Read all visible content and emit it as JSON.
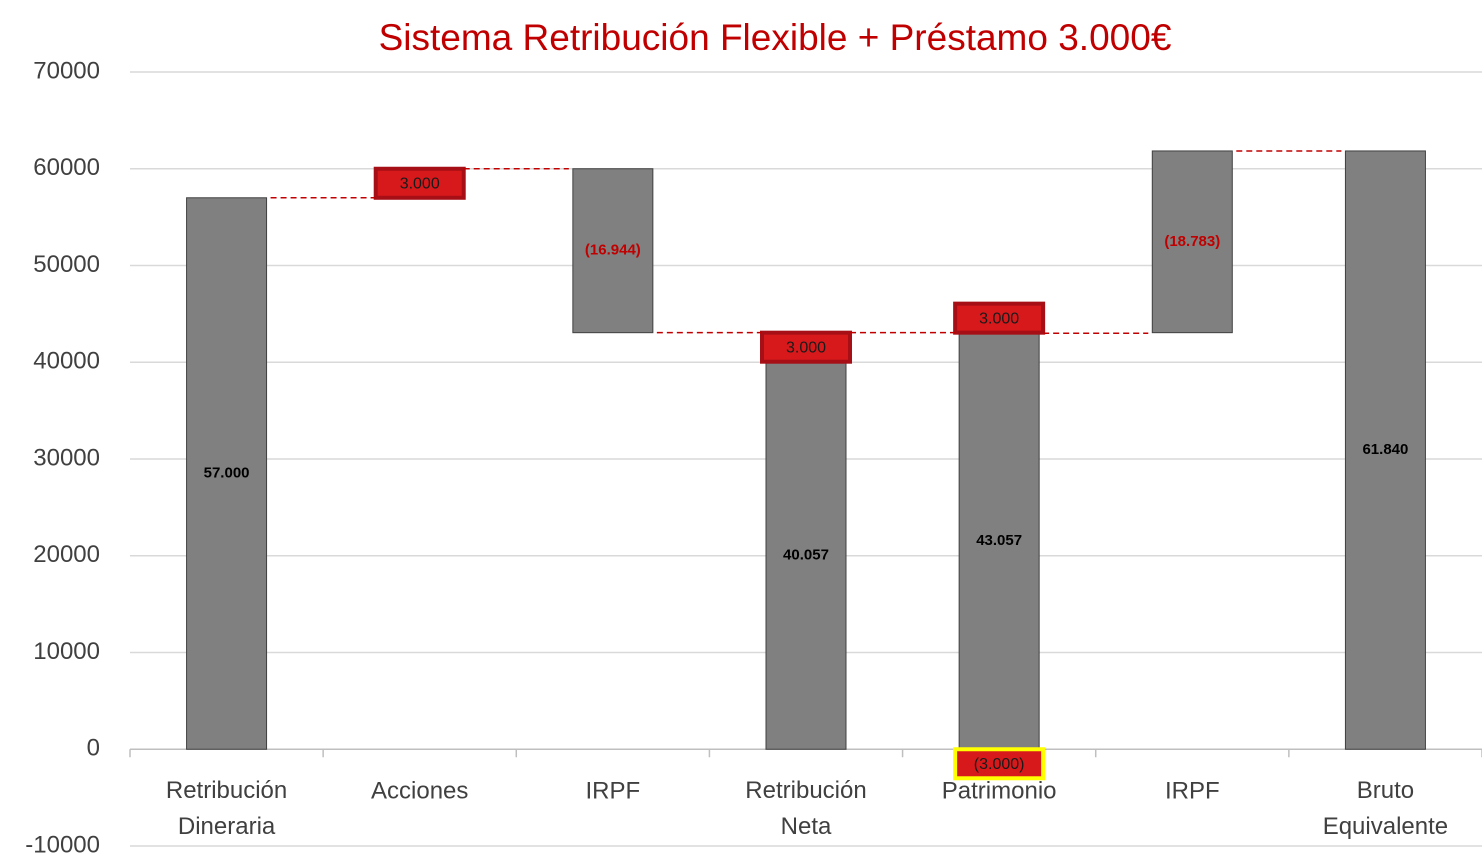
{
  "chart_data": {
    "type": "waterfall",
    "title": "Sistema Retribución Flexible + Préstamo 3.000€",
    "categories": [
      "Retribución Dineraria",
      "Acciones",
      "IRPF",
      "Retribución Neta",
      "Patrimonio",
      "IRPF",
      "Bruto Equivalente"
    ],
    "ylim": [
      -10000,
      70000
    ],
    "yticks": [
      -10000,
      0,
      10000,
      20000,
      30000,
      40000,
      50000,
      60000,
      70000
    ],
    "grid": true,
    "gray": {
      "color": "#808080",
      "label_color": "#000000",
      "base": [
        0,
        null,
        43056,
        0,
        0,
        43057,
        0
      ],
      "values": [
        57000,
        null,
        -16944,
        40057,
        43057,
        -18783,
        61840
      ],
      "value_labels": [
        "57.000",
        null,
        "(16.944)",
        "40.057",
        "43.057",
        "(18.783)",
        "61.840"
      ],
      "negative_label_color": "#c00000"
    },
    "red": [
      {
        "color": "#d7191c",
        "edgecolor": "#a50f15",
        "base": [
          null,
          57000,
          null,
          40057,
          43057,
          null,
          null
        ],
        "values": [
          null,
          3000,
          null,
          3000,
          3000,
          null,
          null
        ],
        "value_labels": [
          null,
          "3.000",
          null,
          "3.000",
          "3.000",
          null,
          null
        ]
      },
      {
        "color": "#d7191c",
        "edgecolor": "#ffff00",
        "base": [
          null,
          null,
          null,
          null,
          0,
          null,
          null
        ],
        "values": [
          null,
          null,
          null,
          null,
          -3000,
          null,
          null
        ],
        "value_labels": [
          null,
          null,
          null,
          null,
          "(3.000)",
          null,
          null
        ]
      }
    ],
    "connector_color": "#c00000"
  }
}
